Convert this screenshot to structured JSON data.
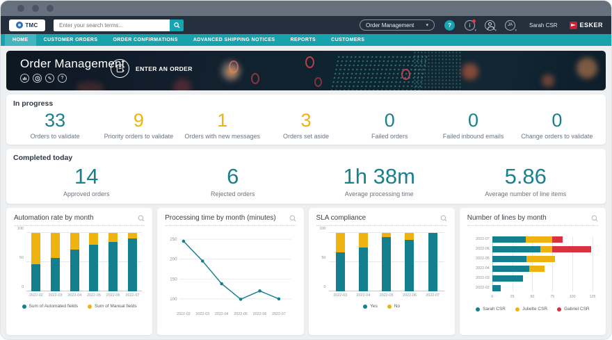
{
  "header": {
    "logo_text": "TMC",
    "search": {
      "placeholder": "Enter your search terms..."
    },
    "module_select": {
      "value": "Order Management"
    },
    "help_label": "?",
    "info_label": "i",
    "initials": "JA",
    "user": "Sarah CSR",
    "brand": "ESKER"
  },
  "nav": {
    "items": [
      {
        "label": "HOME",
        "active": true
      },
      {
        "label": "CUSTOMER ORDERS",
        "active": false
      },
      {
        "label": "ORDER CONFIRMATIONS",
        "active": false
      },
      {
        "label": "ADVANCED SHIPPING NOTICES",
        "active": false
      },
      {
        "label": "REPORTS",
        "active": false
      },
      {
        "label": "CUSTOMERS",
        "active": false
      }
    ]
  },
  "hero": {
    "title": "Order Management",
    "action_label": "ENTER AN ORDER",
    "help_glyph": "?"
  },
  "in_progress": {
    "title": "In progress",
    "kpis": [
      {
        "value": "33",
        "label": "Orders to validate",
        "color": "teal"
      },
      {
        "value": "9",
        "label": "Priority orders to validate",
        "color": "yellow"
      },
      {
        "value": "1",
        "label": "Orders with new messages",
        "color": "yellow"
      },
      {
        "value": "3",
        "label": "Orders set aside",
        "color": "yellow"
      },
      {
        "value": "0",
        "label": "Failed orders",
        "color": "teal"
      },
      {
        "value": "0",
        "label": "Failed inbound emails",
        "color": "teal"
      },
      {
        "value": "0",
        "label": "Change orders to validate",
        "color": "teal"
      }
    ]
  },
  "completed_today": {
    "title": "Completed today",
    "kpis": [
      {
        "value": "14",
        "label": "Approved orders",
        "color": "teal"
      },
      {
        "value": "6",
        "label": "Rejected orders",
        "color": "teal"
      },
      {
        "value": "1h 38m",
        "label": "Average processing time",
        "color": "teal"
      },
      {
        "value": "5.86",
        "label": "Average number of line items",
        "color": "teal"
      }
    ]
  },
  "colors": {
    "teal": "#19808f",
    "yellow": "#efb310",
    "red": "#d8323e",
    "brand_teal": "#18a2ae",
    "header_bg": "#232f3d"
  },
  "chart_data": [
    {
      "type": "bar",
      "stacked": true,
      "title": "Automation rate by month",
      "categories": [
        "2022-02",
        "2022-03",
        "2022-04",
        "2022-05",
        "2022-06",
        "2022-07"
      ],
      "series": [
        {
          "name": "Sum of Automated fields",
          "color": "#14808d",
          "values": [
            46,
            57,
            72,
            80,
            85,
            90
          ]
        },
        {
          "name": "Sum of Manual fields",
          "color": "#efb310",
          "values": [
            54,
            43,
            28,
            20,
            15,
            10
          ]
        }
      ],
      "yticks": [
        0,
        50,
        100
      ],
      "ylim": [
        0,
        100
      ],
      "legend_position": "bottom"
    },
    {
      "type": "line",
      "title": "Processing time by month (minutes)",
      "categories": [
        "2022-02",
        "2022-03",
        "2022-04",
        "2022-05",
        "2022-06",
        "2022-07"
      ],
      "series": [
        {
          "color": "#14808d",
          "values": [
            245,
            195,
            138,
            99,
            120,
            100
          ]
        }
      ],
      "yticks": [
        100,
        150,
        200,
        250
      ],
      "ylim": [
        85,
        255
      ],
      "grid": true,
      "legend": false
    },
    {
      "type": "bar",
      "stacked": true,
      "title": "SLA compliance",
      "categories": [
        "2022-03",
        "2022-04",
        "2022-05",
        "2022-06",
        "2022-07"
      ],
      "series": [
        {
          "name": "Yes",
          "color": "#14808d",
          "values": [
            67,
            75,
            93,
            88,
            100
          ]
        },
        {
          "name": "No",
          "color": "#efb310",
          "values": [
            33,
            25,
            7,
            12,
            0
          ]
        }
      ],
      "yticks": [
        0,
        50,
        100
      ],
      "ylim": [
        0,
        100
      ],
      "legend_position": "bottom"
    },
    {
      "type": "barh",
      "stacked": true,
      "title": "Number of lines by month",
      "categories": [
        "2022-07",
        "2022-06",
        "2022-05",
        "2022-04",
        "2022-03",
        "2022-02"
      ],
      "series": [
        {
          "name": "Sarah CSR",
          "color": "#14808d",
          "values": [
            42,
            60,
            43,
            46,
            38,
            11
          ]
        },
        {
          "name": "Juliette CSR",
          "color": "#efb310",
          "values": [
            33,
            15,
            35,
            19,
            0,
            0
          ]
        },
        {
          "name": "Gabriel CSR",
          "color": "#d8323e",
          "values": [
            13,
            48,
            0,
            0,
            0,
            0
          ]
        }
      ],
      "xticks": [
        0,
        25,
        50,
        75,
        100,
        125
      ],
      "xlim": [
        0,
        125
      ],
      "legend_position": "bottom"
    }
  ]
}
